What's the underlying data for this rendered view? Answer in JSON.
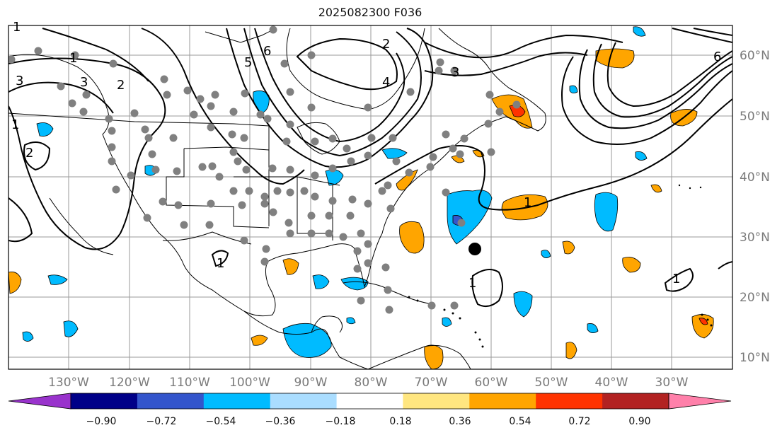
{
  "title": "2025082300 F036",
  "lat_labels": [
    "60°N",
    "50°N",
    "40°N",
    "30°N",
    "20°N",
    "10°N"
  ],
  "lon_labels": [
    "130°W",
    "120°W",
    "110°W",
    "100°W",
    "90°W",
    "80°W",
    "70°W",
    "60°W",
    "50°W",
    "40°W",
    "30°W"
  ],
  "contour_labels": [
    "1",
    "3",
    "2",
    "1",
    "2",
    "3",
    "6",
    "5",
    "4",
    "3",
    "2",
    "1",
    "6",
    "1",
    "1",
    "1",
    "1"
  ],
  "colorbar": {
    "ticks": [
      "−0.90",
      "−0.72",
      "−0.54",
      "−0.36",
      "−0.18",
      "0.18",
      "0.36",
      "0.54",
      "0.72",
      "0.90"
    ],
    "colors": [
      "#9933cc",
      "#000088",
      "#3355cc",
      "#00bbff",
      "#aaddff",
      "#ffffff",
      "#ffe680",
      "#ffa500",
      "#ff3300",
      "#b22222",
      "#ff80aa"
    ]
  },
  "colors": {
    "pos_fill": "#ffa500",
    "pos_strong": "#ff3300",
    "neg_fill": "#00bbff",
    "neg_strong": "#3355cc",
    "station_dot": "#808080",
    "storm_marker": "#000000"
  }
}
